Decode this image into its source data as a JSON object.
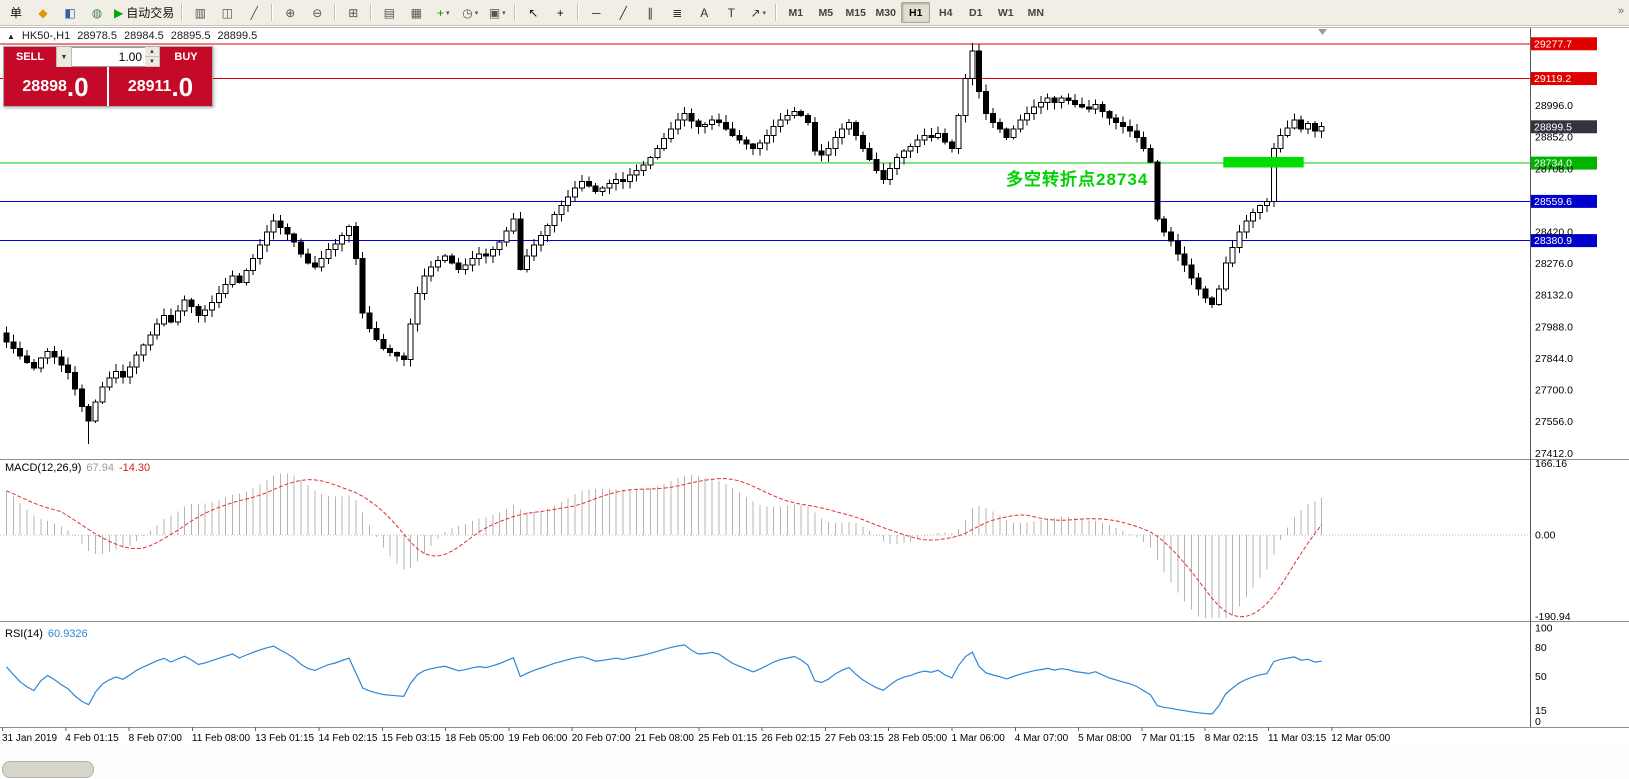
{
  "toolbar": {
    "items": [
      {
        "name": "orders-menu",
        "glyph": "单",
        "color": "#111"
      },
      {
        "name": "new-order-icon",
        "glyph": "◆",
        "color": "#d99b00"
      },
      {
        "name": "profiles-icon",
        "glyph": "◧",
        "color": "#33619e"
      },
      {
        "name": "market-watch-icon",
        "glyph": "◍",
        "color": "#4a7d4a"
      },
      {
        "name": "autotrading-button",
        "glyph": "▶",
        "color": "#0aa30a",
        "label": "自动交易"
      },
      {
        "sep": true
      },
      {
        "name": "bar-chart-icon",
        "glyph": "▥",
        "color": "#555"
      },
      {
        "name": "candlestick-chart-icon",
        "glyph": "◫",
        "color": "#555"
      },
      {
        "name": "line-chart-icon",
        "glyph": "╱",
        "color": "#555"
      },
      {
        "sep": true
      },
      {
        "name": "zoom-in-icon",
        "glyph": "⊕",
        "color": "#555"
      },
      {
        "name": "zoom-out-icon",
        "glyph": "⊖",
        "color": "#555"
      },
      {
        "sep": true
      },
      {
        "name": "tile-windows-icon",
        "glyph": "⊞",
        "color": "#555"
      },
      {
        "sep": true
      },
      {
        "name": "auto-arrange-icon",
        "glyph": "▤",
        "color": "#555"
      },
      {
        "name": "chart-shift-icon",
        "glyph": "▦",
        "color": "#555"
      },
      {
        "name": "new-chart-button",
        "glyph": "+",
        "color": "#089408",
        "dropdown": true
      },
      {
        "name": "periods-button",
        "glyph": "◷",
        "color": "#555",
        "dropdown": true
      },
      {
        "name": "templates-button",
        "glyph": "▣",
        "color": "#555",
        "dropdown": true
      },
      {
        "sep": true
      },
      {
        "name": "cursor-icon",
        "glyph": "↖",
        "color": "#111"
      },
      {
        "name": "crosshair-icon",
        "glyph": "+",
        "color": "#111"
      },
      {
        "sep": true
      },
      {
        "name": "horizontal-line-icon",
        "glyph": "─",
        "color": "#333"
      },
      {
        "name": "trendline-icon",
        "glyph": "╱",
        "color": "#333"
      },
      {
        "name": "channel-icon",
        "glyph": "∥",
        "color": "#333"
      },
      {
        "name": "fibonacci-icon",
        "glyph": "≣",
        "color": "#333"
      },
      {
        "name": "text-icon",
        "glyph": "A",
        "color": "#333"
      },
      {
        "name": "label-icon",
        "glyph": "T",
        "color": "#333"
      },
      {
        "name": "arrows-icon",
        "glyph": "↗",
        "color": "#333",
        "dropdown": true
      },
      {
        "sep": true
      }
    ],
    "timeframes": [
      {
        "label": "M1"
      },
      {
        "label": "M5"
      },
      {
        "label": "M15"
      },
      {
        "label": "M30"
      },
      {
        "label": "H1",
        "active": true
      },
      {
        "label": "H4"
      },
      {
        "label": "D1"
      },
      {
        "label": "W1"
      },
      {
        "label": "MN"
      }
    ],
    "overflow_glyph": "»"
  },
  "chart": {
    "collapse_arrow": "▲",
    "title_symbol": "HK50-,H1",
    "ohlc": {
      "open": "28978.5",
      "high": "28984.5",
      "low": "28895.5",
      "close": "28899.5"
    }
  },
  "trade_widget": {
    "sell_label": "SELL",
    "buy_label": "BUY",
    "volume": "1.00",
    "sell_price": "28898",
    "sell_price_big": ".0",
    "buy_price": "28911",
    "buy_price_big": ".0",
    "button_color": "#c40a28"
  },
  "price_scale": {
    "plain_labels": [
      {
        "price": 28996.0,
        "text": "28996.0"
      },
      {
        "price": 28852.0,
        "text": "28852.0"
      },
      {
        "price": 28708.0,
        "text": "28708.0"
      },
      {
        "price": 28420.0,
        "text": "28420.0"
      },
      {
        "price": 28276.0,
        "text": "28276.0"
      },
      {
        "price": 28132.0,
        "text": "28132.0"
      },
      {
        "price": 27988.0,
        "text": "27988.0"
      },
      {
        "price": 27844.0,
        "text": "27844.0"
      },
      {
        "price": 27700.0,
        "text": "27700.0"
      },
      {
        "price": 27556.0,
        "text": "27556.0"
      },
      {
        "price": 27412.0,
        "text": "27412.0"
      }
    ],
    "tags": [
      {
        "price": 29277.7,
        "text": "29277.7",
        "color": "#e00000"
      },
      {
        "price": 29119.2,
        "text": "29119.2",
        "color": "#e00000"
      },
      {
        "price": 28899.5,
        "text": "28899.5",
        "color": "#34343f",
        "current": true
      },
      {
        "price": 28734.0,
        "text": "28734.0",
        "color": "#00b400"
      },
      {
        "price": 28559.6,
        "text": "28559.6",
        "color": "#0000cc"
      },
      {
        "price": 28380.9,
        "text": "28380.9",
        "color": "#0000cc"
      }
    ]
  },
  "macd_panel": {
    "label": "MACD(12,26,9)",
    "main_value": "67.94",
    "signal_value": "-14.30",
    "scale": [
      "166.16",
      "0.00",
      "-190.94"
    ]
  },
  "rsi_panel": {
    "label": "RSI(14)",
    "value": "60.9326",
    "scale": [
      "100",
      "80",
      "50",
      "15",
      "0"
    ]
  },
  "time_axis": {
    "labels": [
      "31 Jan 2019",
      "4 Feb 01:15",
      "8 Feb 07:00",
      "11 Feb 08:00",
      "13 Feb 01:15",
      "14 Feb 02:15",
      "15 Feb 03:15",
      "18 Feb 05:00",
      "19 Feb 06:00",
      "20 Feb 07:00",
      "21 Feb 08:00",
      "25 Feb 01:15",
      "26 Feb 02:15",
      "27 Feb 03:15",
      "28 Feb 05:00",
      "1 Mar 06:00",
      "4 Mar 07:00",
      "5 Mar 08:00",
      "7 Mar 01:15",
      "8 Mar 02:15",
      "11 Mar 03:15",
      "12 Mar 05:00"
    ]
  },
  "chart_data": {
    "type": "candlestick",
    "symbol": "HK50-",
    "timeframe": "H1",
    "title": "HK50-,H1 28978.5 28984.5 28895.5 28899.5",
    "price_axis_range": {
      "min": 27412.0,
      "max": 29277.7
    },
    "current_price": 28899.5,
    "closes": [
      27920,
      27890,
      27855,
      27825,
      27800,
      27845,
      27875,
      27850,
      27815,
      27780,
      27705,
      27625,
      27560,
      27645,
      27715,
      27755,
      27785,
      27760,
      27805,
      27860,
      27905,
      27950,
      28000,
      28040,
      28010,
      28060,
      28110,
      28080,
      28040,
      28065,
      28100,
      28140,
      28180,
      28220,
      28190,
      28245,
      28300,
      28360,
      28420,
      28470,
      28440,
      28410,
      28375,
      28320,
      28280,
      28260,
      28300,
      28340,
      28365,
      28405,
      28445,
      28300,
      28050,
      27980,
      27930,
      27890,
      27870,
      27855,
      27840,
      28000,
      28140,
      28220,
      28260,
      28290,
      28310,
      28280,
      28250,
      28270,
      28300,
      28320,
      28310,
      28340,
      28375,
      28425,
      28480,
      28250,
      28310,
      28360,
      28405,
      28450,
      28500,
      28540,
      28580,
      28620,
      28650,
      28630,
      28605,
      28620,
      28640,
      28660,
      28650,
      28680,
      28700,
      28725,
      28760,
      28800,
      28845,
      28890,
      28930,
      28960,
      28925,
      28900,
      28910,
      28930,
      28920,
      28890,
      28860,
      28840,
      28820,
      28800,
      28825,
      28860,
      28900,
      28930,
      28950,
      28970,
      28950,
      28920,
      28790,
      28770,
      28800,
      28850,
      28890,
      28920,
      28860,
      28800,
      28750,
      28700,
      28660,
      28710,
      28760,
      28790,
      28810,
      28840,
      28860,
      28850,
      28870,
      28830,
      28800,
      28950,
      29120,
      29245,
      29060,
      28960,
      28920,
      28890,
      28850,
      28890,
      28930,
      28960,
      28990,
      29010,
      29030,
      29010,
      29030,
      29020,
      29000,
      28990,
      28980,
      29000,
      28970,
      28940,
      28920,
      28900,
      28880,
      28850,
      28800,
      28740,
      28480,
      28420,
      28380,
      28320,
      28270,
      28210,
      28160,
      28120,
      28090,
      28160,
      28280,
      28350,
      28420,
      28470,
      28510,
      28540,
      28560,
      28800,
      28860,
      28895,
      28930,
      28890,
      28915,
      28880,
      28900
    ],
    "wick_overrides": {
      "12": {
        "low": 27455
      },
      "141": {
        "high": 29282
      }
    },
    "hlines": [
      {
        "price": 29277.7,
        "color": "#e00000"
      },
      {
        "price": 29119.2,
        "color": "#e00000"
      },
      {
        "price": 28734.0,
        "color": "#00cc00"
      },
      {
        "price": 28559.6,
        "color": "#0000e0"
      },
      {
        "price": 28380.9,
        "color": "#0000e0"
      }
    ],
    "rect_object": {
      "price_top": 28762,
      "price_bottom": 28714,
      "start_index": 178,
      "end_index": 189,
      "color": "#00dd00"
    },
    "annotation": {
      "text": "多空转折点28734",
      "color": "#00d200"
    },
    "macd": {
      "params": [
        12,
        26,
        9
      ],
      "ymax": 166.16,
      "ymin": -190.94,
      "histogram_color": "#b4b4b4",
      "signal_color": "#e03232"
    },
    "rsi": {
      "period": 14,
      "ymax": 100,
      "ymin": 0,
      "line_color": "#2f86d6"
    },
    "candle_up_color": "#ffffff",
    "candle_down_color": "#000000"
  }
}
